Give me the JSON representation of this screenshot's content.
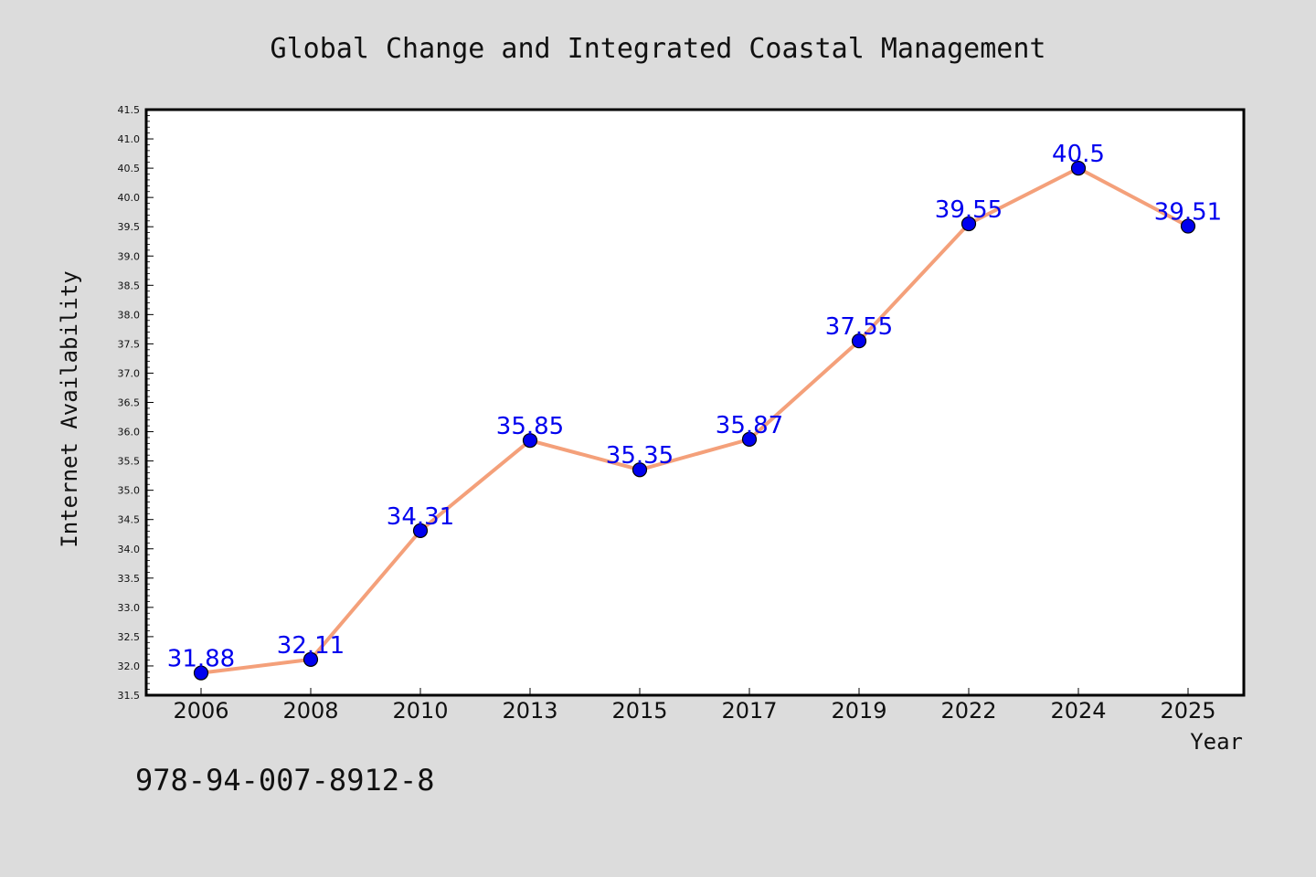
{
  "chart_data": {
    "type": "line",
    "title": "Global Change and Integrated Coastal Management",
    "xlabel": "Year",
    "ylabel": "Internet Availability",
    "categories": [
      "2006",
      "2008",
      "2010",
      "2013",
      "2015",
      "2017",
      "2019",
      "2022",
      "2024",
      "2025"
    ],
    "series": [
      {
        "values": [
          31.88,
          32.11,
          34.31,
          35.85,
          35.35,
          35.87,
          37.55,
          39.55,
          40.5,
          39.51
        ],
        "data_labels": [
          "31.88",
          "32.11",
          "34.31",
          "35.85",
          "35.35",
          "35.87",
          "37.55",
          "39.55",
          "40.5",
          "39.51"
        ],
        "line_color": "#f4a07a",
        "marker_color": "#0000ee"
      }
    ],
    "ylim": [
      31.5,
      41.5
    ],
    "yticks": [
      "31.5",
      "32.0",
      "32.5",
      "33.0",
      "33.5",
      "34.0",
      "34.5",
      "35.0",
      "35.5",
      "36.0",
      "36.5",
      "37.0",
      "37.5",
      "38.0",
      "38.5",
      "39.0",
      "39.5",
      "40.0",
      "40.5",
      "41.0",
      "41.5"
    ],
    "grid": false,
    "label_color": "#0000ee"
  },
  "footer": {
    "isbn": "978-94-007-8912-8"
  },
  "colors": {
    "background": "#dcdcdc",
    "plot_background": "#ffffff"
  }
}
